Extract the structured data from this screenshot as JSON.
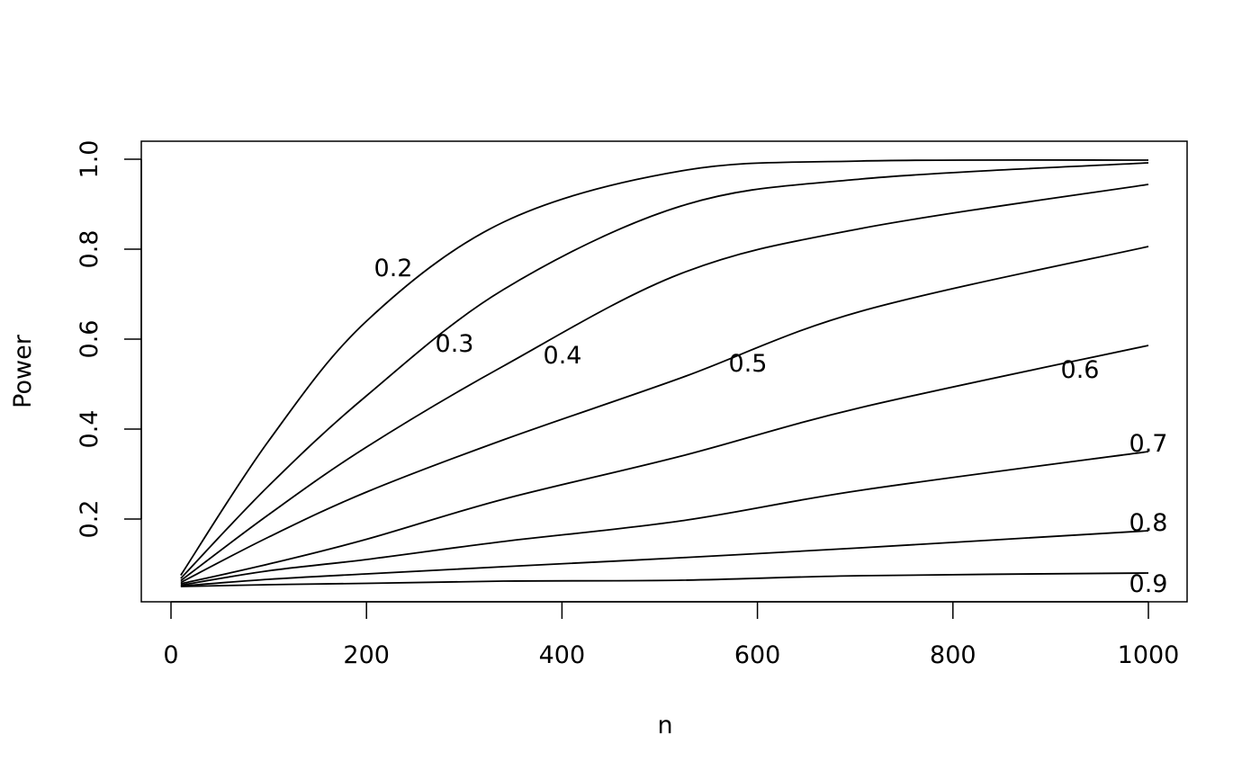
{
  "chart_data": {
    "type": "line",
    "title": "",
    "xlabel": "n",
    "ylabel": "Power",
    "xlim": [
      -15,
      1040
    ],
    "ylim": [
      0.015,
      1.04
    ],
    "grid": false,
    "xticks": [
      0,
      200,
      400,
      600,
      800,
      1000
    ],
    "xtick_labels": [
      "0",
      "200",
      "400",
      "600",
      "800",
      "1000"
    ],
    "yticks": [
      0.2,
      0.4,
      0.6,
      0.8,
      1.0
    ],
    "ytick_labels": [
      "0.2",
      "0.4",
      "0.6",
      "0.8",
      "1.0"
    ],
    "x": [
      10,
      100,
      200,
      340,
      522,
      706,
      1000
    ],
    "series": [
      {
        "name": "0.2",
        "values": [
          0.075,
          0.374,
          0.64,
          0.86,
          0.974,
          0.996,
          0.998
        ]
      },
      {
        "name": "0.3",
        "values": [
          0.068,
          0.274,
          0.474,
          0.71,
          0.896,
          0.956,
          0.992
        ]
      },
      {
        "name": "0.4",
        "values": [
          0.063,
          0.21,
          0.36,
          0.54,
          0.746,
          0.846,
          0.944
        ]
      },
      {
        "name": "0.5",
        "values": [
          0.059,
          0.16,
          0.26,
          0.376,
          0.514,
          0.662,
          0.806
        ]
      },
      {
        "name": "0.6",
        "values": [
          0.056,
          0.1,
          0.155,
          0.244,
          0.34,
          0.448,
          0.586
        ]
      },
      {
        "name": "0.7",
        "values": [
          0.053,
          0.085,
          0.11,
          0.15,
          0.196,
          0.264,
          0.35
        ]
      },
      {
        "name": "0.8",
        "values": [
          0.051,
          0.066,
          0.078,
          0.094,
          0.114,
          0.136,
          0.174
        ]
      },
      {
        "name": "0.9",
        "values": [
          0.05,
          0.054,
          0.057,
          0.062,
          0.064,
          0.074,
          0.08
        ]
      }
    ],
    "line_color": "#000000",
    "legend": "none (inline curve labels)"
  }
}
